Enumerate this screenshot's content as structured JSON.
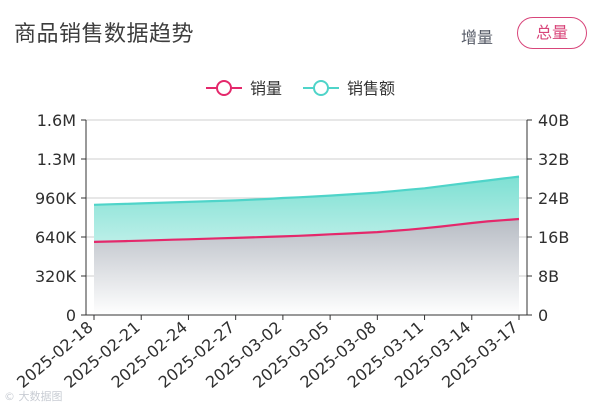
{
  "header": {
    "title": "商品销售数据趋势",
    "tab_increment": "增量",
    "tab_total": "总量"
  },
  "watermark": "© 大数据图",
  "colors": {
    "sales_line": "#e4286b",
    "revenue_line": "#4fd4c9",
    "revenue_fill_top": "#7ee0d3",
    "revenue_fill_bottom": "#ffffff",
    "sales_fill_top": "#b7bcc4",
    "sales_fill_bottom": "#ffffff",
    "axis": "#333333",
    "grid": "#cfcfcf",
    "accent": "#d8457a"
  },
  "chart_data": {
    "type": "area",
    "title": "商品销售数据趋势",
    "legend_position": "top-center",
    "grid": true,
    "x": [
      "2025-02-18",
      "2025-02-19",
      "2025-02-20",
      "2025-02-21",
      "2025-02-22",
      "2025-02-23",
      "2025-02-24",
      "2025-02-25",
      "2025-02-26",
      "2025-02-27",
      "2025-02-28",
      "2025-03-01",
      "2025-03-02",
      "2025-03-03",
      "2025-03-04",
      "2025-03-05",
      "2025-03-06",
      "2025-03-07",
      "2025-03-08",
      "2025-03-09",
      "2025-03-10",
      "2025-03-11",
      "2025-03-12",
      "2025-03-13",
      "2025-03-14",
      "2025-03-15",
      "2025-03-16",
      "2025-03-17"
    ],
    "x_tick_labels": [
      "2025-02-18",
      "2025-02-21",
      "2025-02-24",
      "2025-02-27",
      "2025-03-02",
      "2025-03-05",
      "2025-03-08",
      "2025-03-11",
      "2025-03-14",
      "2025-03-17"
    ],
    "y_left": {
      "ylim": [
        0,
        1600000
      ],
      "tick_labels": [
        "0",
        "320K",
        "640K",
        "960K",
        "1.3M",
        "1.6M"
      ]
    },
    "y_right": {
      "ylim": [
        0,
        40000000000
      ],
      "tick_labels": [
        "0",
        "8B",
        "16B",
        "24B",
        "32B",
        "40B"
      ]
    },
    "series": [
      {
        "name": "销量",
        "axis": "left",
        "values": [
          600000,
          603000,
          606000,
          610000,
          614000,
          618000,
          621000,
          625000,
          629000,
          633000,
          637000,
          641000,
          645000,
          650000,
          656000,
          662000,
          668000,
          674000,
          680000,
          690000,
          700000,
          712000,
          725000,
          740000,
          755000,
          768000,
          778000,
          788000
        ]
      },
      {
        "name": "销售额",
        "axis": "right",
        "values": [
          22600000000,
          22700000000,
          22800000000,
          22900000000,
          23000000000,
          23100000000,
          23200000000,
          23300000000,
          23400000000,
          23500000000,
          23650000000,
          23800000000,
          24000000000,
          24150000000,
          24300000000,
          24500000000,
          24700000000,
          24900000000,
          25100000000,
          25400000000,
          25700000000,
          26000000000,
          26400000000,
          26800000000,
          27200000000,
          27600000000,
          28000000000,
          28400000000
        ]
      }
    ]
  }
}
